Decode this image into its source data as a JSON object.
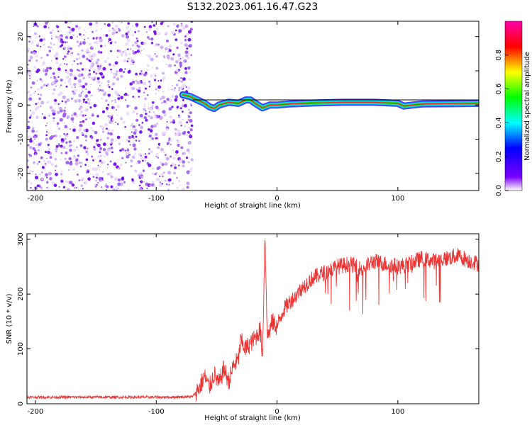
{
  "page_title": "S132.2023.061.16.47.G23",
  "chart_data": [
    {
      "type": "heatmap",
      "title": "S132.2023.061.16.47.G23",
      "xlabel": "Height of straight line (km)",
      "ylabel": "Frequency (Hz)",
      "xlim": [
        -207,
        167
      ],
      "ylim": [
        -25,
        24.5
      ],
      "xticks": [
        -200,
        -100,
        0,
        100
      ],
      "xtick_labels": [
        "-200",
        "-100",
        "0",
        "100"
      ],
      "yticks": [
        -20,
        -10,
        0,
        10,
        20
      ],
      "ytick_labels": [
        "-20",
        "-10",
        "0",
        "10",
        "20"
      ],
      "grid": false,
      "colorbar": {
        "label": "Normalized spectral amplitude",
        "range": [
          0,
          1
        ],
        "ticks": [
          0.0,
          0.2,
          0.4,
          0.6,
          0.8
        ],
        "tick_labels": [
          "0.0",
          "0.2",
          "0.4",
          "0.6",
          "0.8"
        ],
        "colormap": [
          "#ffffff",
          "#7a00ff",
          "#0000ff",
          "#00ffff",
          "#00ff00",
          "#ffff00",
          "#ff0000",
          "#ff00aa"
        ]
      },
      "noise_region": {
        "x_range": [
          -207,
          -75
        ],
        "freq_range": [
          -25,
          24.5
        ],
        "amplitude": "low, scattered"
      },
      "signal_track": [
        {
          "x": -78,
          "f": 3
        },
        {
          "x": -72,
          "f": 2.5
        },
        {
          "x": -66,
          "f": 1.5
        },
        {
          "x": -60,
          "f": 0.5
        },
        {
          "x": -56,
          "f": -0.5
        },
        {
          "x": -52,
          "f": -1
        },
        {
          "x": -48,
          "f": 0
        },
        {
          "x": -40,
          "f": 0.8
        },
        {
          "x": -32,
          "f": 0.5
        },
        {
          "x": -26,
          "f": 1.5
        },
        {
          "x": -22,
          "f": 1.5
        },
        {
          "x": -18,
          "f": 0.5
        },
        {
          "x": -12,
          "f": -0.8
        },
        {
          "x": -6,
          "f": 0
        },
        {
          "x": 0,
          "f": 0
        },
        {
          "x": 10,
          "f": 0.3
        },
        {
          "x": 30,
          "f": 0.6
        },
        {
          "x": 55,
          "f": 0.8
        },
        {
          "x": 80,
          "f": 0.8
        },
        {
          "x": 100,
          "f": 0.5
        },
        {
          "x": 105,
          "f": -0.3
        },
        {
          "x": 120,
          "f": 0.3
        },
        {
          "x": 167,
          "f": 0.5
        }
      ],
      "reference_line_f": 1.5
    },
    {
      "type": "line",
      "xlabel": "Height of straight line (km)",
      "ylabel": "SNR (10 * v/v)",
      "xlim": [
        -207,
        167
      ],
      "ylim": [
        0,
        310
      ],
      "xticks": [
        -200,
        -100,
        0,
        100
      ],
      "xtick_labels": [
        "-200",
        "-100",
        "0",
        "100"
      ],
      "yticks": [
        0,
        100,
        200,
        300
      ],
      "ytick_labels": [
        "0",
        "100",
        "200",
        "300"
      ],
      "grid": false,
      "series": [
        {
          "color": "#ee3333",
          "x": [
            -207,
            -180,
            -150,
            -120,
            -90,
            -70,
            -64,
            -60,
            -56,
            -52,
            -48,
            -44,
            -40,
            -36,
            -32,
            -30,
            -26,
            -22,
            -18,
            -14,
            -12,
            -10,
            -8,
            -4,
            0,
            5,
            10,
            15,
            20,
            25,
            30,
            40,
            50,
            60,
            70,
            80,
            90,
            100,
            110,
            120,
            130,
            140,
            150,
            160,
            167
          ],
          "y": [
            12,
            12,
            12,
            12,
            12,
            13,
            30,
            50,
            30,
            55,
            35,
            65,
            40,
            70,
            80,
            115,
            100,
            110,
            120,
            135,
            90,
            310,
            120,
            150,
            140,
            170,
            185,
            195,
            210,
            220,
            230,
            240,
            250,
            255,
            245,
            260,
            255,
            250,
            255,
            265,
            260,
            265,
            270,
            260,
            255
          ]
        }
      ]
    }
  ]
}
